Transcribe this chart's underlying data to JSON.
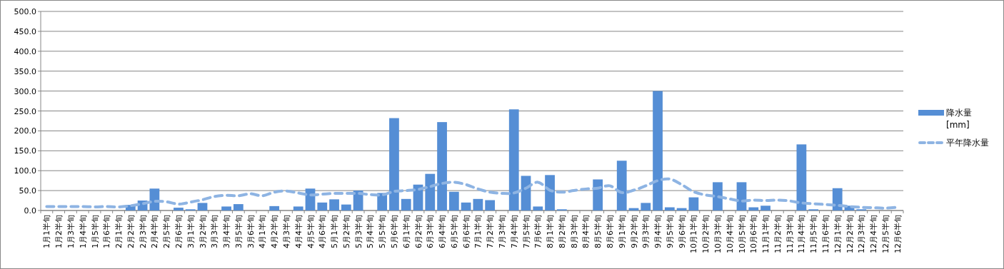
{
  "chart_data": {
    "type": "bar",
    "categories": [
      "1月1半旬",
      "1月2半旬",
      "1月3半旬",
      "1月4半旬",
      "1月5半旬",
      "1月6半旬",
      "2月1半旬",
      "2月2半旬",
      "2月3半旬",
      "2月4半旬",
      "2月5半旬",
      "2月6半旬",
      "3月1半旬",
      "3月2半旬",
      "3月3半旬",
      "3月4半旬",
      "3月5半旬",
      "3月6半旬",
      "4月1半旬",
      "4月2半旬",
      "4月3半旬",
      "4月4半旬",
      "4月5半旬",
      "4月6半旬",
      "5月1半旬",
      "5月2半旬",
      "5月3半旬",
      "5月4半旬",
      "5月5半旬",
      "5月6半旬",
      "6月1半旬",
      "6月2半旬",
      "6月3半旬",
      "6月4半旬",
      "6月5半旬",
      "6月6半旬",
      "7月1半旬",
      "7月2半旬",
      "7月3半旬",
      "7月4半旬",
      "7月5半旬",
      "7月6半旬",
      "8月1半旬",
      "8月2半旬",
      "8月3半旬",
      "8月4半旬",
      "8月5半旬",
      "8月6半旬",
      "9月1半旬",
      "9月2半旬",
      "9月3半旬",
      "9月4半旬",
      "9月5半旬",
      "9月6半旬",
      "10月1半旬",
      "10月2半旬",
      "10月3半旬",
      "10月4半旬",
      "10月5半旬",
      "10月6半旬",
      "11月1半旬",
      "11月2半旬",
      "11月3半旬",
      "11月4半旬",
      "11月5半旬",
      "11月6半旬",
      "12月1半旬",
      "12月2半旬",
      "12月3半旬",
      "12月4半旬",
      "12月5半旬",
      "12月6半旬"
    ],
    "series": [
      {
        "name": "降水量 [mm]",
        "color": "#558ed5",
        "values": [
          0,
          0,
          0,
          0,
          0,
          0,
          0,
          14,
          25,
          55,
          0,
          7,
          3,
          19,
          0,
          10,
          16,
          0,
          0,
          11,
          0,
          10,
          55,
          20,
          28,
          15,
          50,
          0,
          44,
          232,
          29,
          65,
          92,
          222,
          47,
          20,
          29,
          26,
          0,
          254,
          87,
          10,
          89,
          3,
          0,
          0,
          78,
          0,
          125,
          6,
          19,
          300,
          8,
          6,
          33,
          0,
          71,
          0,
          71,
          8,
          12,
          0,
          0,
          166,
          3,
          0,
          56,
          12,
          3,
          0,
          0,
          0
        ]
      },
      {
        "name": "平年降水量",
        "type": "line",
        "line_style": "dashed",
        "color": "#8eb4e3",
        "values": [
          10,
          10,
          10,
          10,
          9,
          10,
          9,
          12,
          17,
          23,
          22,
          16,
          21,
          27,
          35,
          38,
          37,
          42,
          37,
          46,
          49,
          44,
          39,
          41,
          43,
          43,
          43,
          40,
          39,
          48,
          50,
          53,
          60,
          68,
          71,
          65,
          54,
          46,
          43,
          44,
          56,
          71,
          51,
          46,
          50,
          54,
          56,
          62,
          45,
          51,
          62,
          75,
          79,
          65,
          47,
          39,
          35,
          29,
          24,
          26,
          25,
          26,
          24,
          19,
          17,
          15,
          13,
          10,
          8,
          7,
          6,
          8
        ]
      }
    ],
    "ylim": [
      0,
      500
    ],
    "yticks": [
      {
        "value": 0,
        "label": "0.0"
      },
      {
        "value": 50,
        "label": "50.0"
      },
      {
        "value": 100,
        "label": "100.0"
      },
      {
        "value": 150,
        "label": "150.0"
      },
      {
        "value": 200,
        "label": "200.0"
      },
      {
        "value": 250,
        "label": "250.0"
      },
      {
        "value": 300,
        "label": "300.0"
      },
      {
        "value": 350,
        "label": "350.0"
      },
      {
        "value": 400,
        "label": "400.0"
      },
      {
        "value": 450,
        "label": "450.0"
      },
      {
        "value": 500,
        "label": "500.0"
      }
    ],
    "grid": "y",
    "legend": "right"
  }
}
